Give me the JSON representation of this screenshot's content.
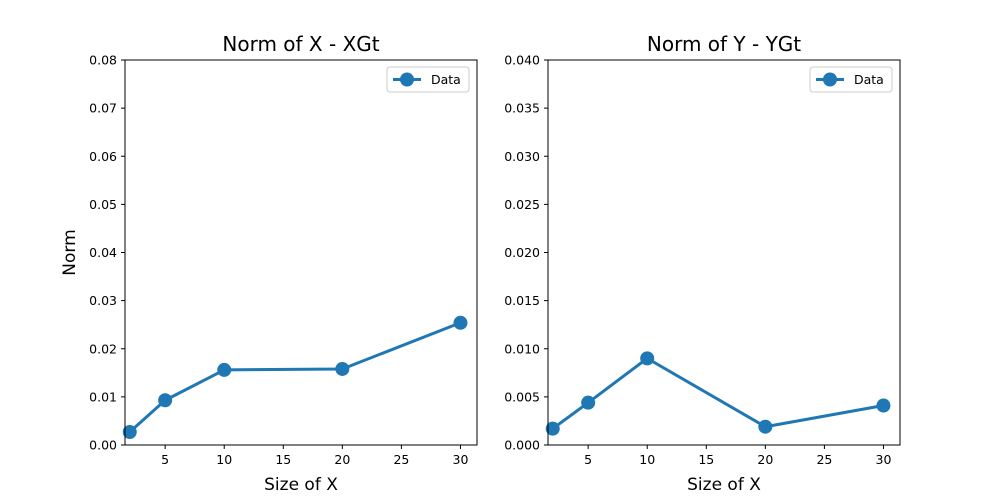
{
  "chart_data": [
    {
      "type": "line",
      "title": "Norm of X - XGt",
      "xlabel": "Size of X",
      "ylabel": "Norm",
      "xlim": [
        1.6,
        31.4
      ],
      "ylim": [
        0,
        0.08
      ],
      "x_ticks": [
        5,
        10,
        15,
        20,
        25,
        30
      ],
      "x_tick_labels": [
        "5",
        "10",
        "15",
        "20",
        "25",
        "30"
      ],
      "y_ticks": [
        0,
        0.01,
        0.02,
        0.03,
        0.04,
        0.05,
        0.06,
        0.07,
        0.08
      ],
      "y_tick_labels": [
        "0.00",
        "0.01",
        "0.02",
        "0.03",
        "0.04",
        "0.05",
        "0.06",
        "0.07",
        "0.08"
      ],
      "grid": false,
      "legend_position": "top-right",
      "series": [
        {
          "name": "Data",
          "color": "#1f77b4",
          "marker": "circle",
          "x": [
            2,
            5,
            10,
            20,
            30
          ],
          "y": [
            0.0027,
            0.0093,
            0.0156,
            0.0158,
            0.0254
          ]
        }
      ]
    },
    {
      "type": "line",
      "title": "Norm of Y - YGt",
      "xlabel": "Size of X",
      "ylabel": "",
      "xlim": [
        1.6,
        31.4
      ],
      "ylim": [
        0,
        0.04
      ],
      "x_ticks": [
        5,
        10,
        15,
        20,
        25,
        30
      ],
      "x_tick_labels": [
        "5",
        "10",
        "15",
        "20",
        "25",
        "30"
      ],
      "y_ticks": [
        0,
        0.005,
        0.01,
        0.015,
        0.02,
        0.025,
        0.03,
        0.035,
        0.04
      ],
      "y_tick_labels": [
        "0.000",
        "0.005",
        "0.010",
        "0.015",
        "0.020",
        "0.025",
        "0.030",
        "0.035",
        "0.040"
      ],
      "grid": false,
      "legend_position": "top-right",
      "series": [
        {
          "name": "Data",
          "color": "#1f77b4",
          "marker": "circle",
          "x": [
            2,
            5,
            10,
            20,
            30
          ],
          "y": [
            0.0017,
            0.0044,
            0.009,
            0.0019,
            0.0041
          ]
        }
      ]
    }
  ]
}
